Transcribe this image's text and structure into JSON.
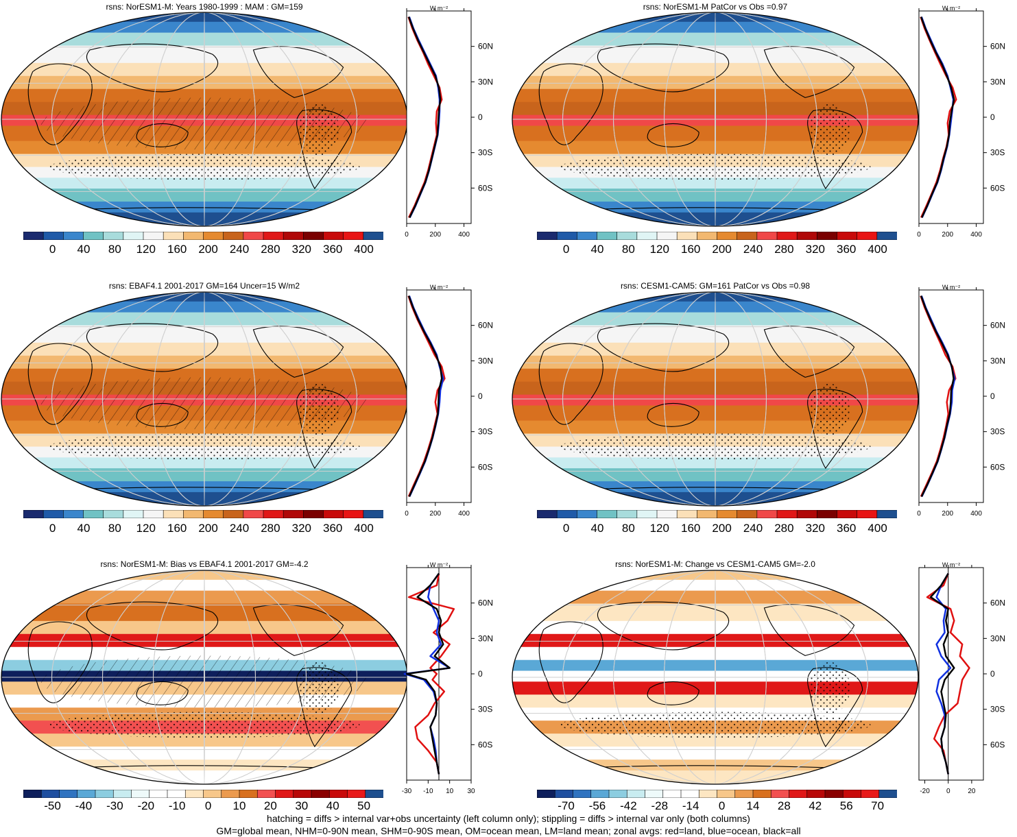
{
  "footer": {
    "line1": "hatching = diffs > internal var+obs uncertainty (left column only); stippling = diffs > internal var only (both columns)",
    "line2": "GM=global mean, NHM=0-90N mean, SHM=0-90S mean, OM=ocean mean, LM=land mean; zonal avgs: red=land, blue=ocean, black=all"
  },
  "colorbars": {
    "abs": {
      "labels": [
        "0",
        "40",
        "80",
        "120",
        "160",
        "200",
        "240",
        "280",
        "320",
        "360",
        "400"
      ],
      "colors": [
        "#1a2a6e",
        "#1f5aa8",
        "#3a86cc",
        "#70c2c4",
        "#a8dcdc",
        "#e0f5f5",
        "#f5f5f5",
        "#fbe0b8",
        "#f2b870",
        "#e58a30",
        "#c8641c",
        "#f04848",
        "#e01818",
        "#b00808",
        "#7a0000",
        "#c80a0a",
        "#e81414",
        "#1e4f8f"
      ]
    },
    "bias": {
      "labels": [
        "-50",
        "-40",
        "-30",
        "-20",
        "-10",
        "0",
        "10",
        "20",
        "30",
        "40",
        "50"
      ],
      "colors": [
        "#0e1f5c",
        "#1f4fa0",
        "#2f73c0",
        "#5aa8d6",
        "#8ccde0",
        "#c8ecf0",
        "#eefafa",
        "#ffffff",
        "#ffffff",
        "#fde6c2",
        "#f7c78a",
        "#eb9a4e",
        "#d8701f",
        "#f25050",
        "#e01818",
        "#b80808",
        "#8a0000",
        "#c80a0a",
        "#e81a1a",
        "#1e4f8f"
      ]
    },
    "change": {
      "labels": [
        "-70",
        "-56",
        "-42",
        "-28",
        "-14",
        "0",
        "14",
        "28",
        "42",
        "56",
        "70"
      ],
      "colors": [
        "#0e1f5c",
        "#1f4fa0",
        "#2f73c0",
        "#5aa8d6",
        "#8ccde0",
        "#c8ecf0",
        "#eefafa",
        "#ffffff",
        "#ffffff",
        "#fde6c2",
        "#f7c78a",
        "#eb9a4e",
        "#d8701f",
        "#f25050",
        "#e01818",
        "#b80808",
        "#8a0000",
        "#c80a0a",
        "#e81a1a",
        "#1e4f8f"
      ]
    }
  },
  "chart_data": [
    {
      "type": "heatmap",
      "title": "rsns: NorESM1-M: Years 1980-1999 : MAM : GM=159",
      "colorbar": "abs",
      "map_style": "abs",
      "hatching": true,
      "zonal": {
        "unit": "W m⁻²",
        "xlim": [
          0,
          450
        ],
        "xticks": [
          0,
          200,
          400
        ],
        "yticks": [
          "60N",
          "30N",
          "0",
          "30S",
          "60S"
        ],
        "ylim": [
          -90,
          90
        ],
        "lat": [
          -85,
          -75,
          -65,
          -55,
          -45,
          -35,
          -25,
          -15,
          -5,
          5,
          15,
          25,
          35,
          45,
          55,
          65,
          75,
          85
        ],
        "all": [
          20,
          60,
          95,
          130,
          155,
          175,
          195,
          215,
          220,
          225,
          235,
          225,
          200,
          160,
          120,
          80,
          45,
          15
        ],
        "land": [
          15,
          55,
          90,
          125,
          150,
          170,
          190,
          210,
          205,
          210,
          245,
          230,
          190,
          150,
          115,
          75,
          40,
          12
        ],
        "ocean": [
          22,
          62,
          97,
          132,
          157,
          177,
          197,
          217,
          225,
          230,
          230,
          220,
          205,
          165,
          125,
          85,
          48,
          18
        ]
      }
    },
    {
      "type": "heatmap",
      "title": "rsns: NorESM1-M PatCor vs Obs =0.97",
      "colorbar": "abs",
      "map_style": "abs",
      "hatching": false,
      "zonal": {
        "unit": "W m⁻²",
        "xlim": [
          0,
          450
        ],
        "xticks": [
          0,
          200,
          400
        ],
        "yticks": [
          "60N",
          "30N",
          "0",
          "30S",
          "60S"
        ],
        "ylim": [
          -90,
          90
        ],
        "lat": [
          -85,
          -75,
          -65,
          -55,
          -45,
          -35,
          -25,
          -15,
          -5,
          5,
          15,
          25,
          35,
          45,
          55,
          65,
          75,
          85
        ],
        "all": [
          20,
          58,
          92,
          128,
          152,
          172,
          195,
          210,
          215,
          228,
          245,
          225,
          195,
          160,
          118,
          80,
          45,
          15
        ],
        "land": [
          15,
          52,
          88,
          122,
          148,
          168,
          192,
          208,
          200,
          215,
          260,
          235,
          190,
          150,
          112,
          75,
          40,
          12
        ],
        "ocean": [
          22,
          60,
          95,
          130,
          155,
          175,
          197,
          212,
          222,
          232,
          240,
          220,
          200,
          165,
          122,
          85,
          48,
          18
        ]
      }
    },
    {
      "type": "heatmap",
      "title": "rsns: EBAF4.1 2001-2017 GM=164 Uncer=15 W/m2",
      "colorbar": "abs",
      "map_style": "abs",
      "hatching": true,
      "zonal": {
        "unit": "W m⁻²",
        "xlim": [
          0,
          450
        ],
        "xticks": [
          0,
          200,
          400
        ],
        "yticks": [
          "60N",
          "30N",
          "0",
          "30S",
          "60S"
        ],
        "ylim": [
          -90,
          90
        ],
        "lat": [
          -85,
          -75,
          -65,
          -55,
          -45,
          -35,
          -25,
          -15,
          -5,
          5,
          15,
          25,
          35,
          45,
          55,
          65,
          75,
          85
        ],
        "all": [
          18,
          55,
          92,
          128,
          155,
          180,
          200,
          218,
          222,
          225,
          245,
          235,
          205,
          165,
          120,
          80,
          45,
          15
        ],
        "land": [
          14,
          50,
          88,
          122,
          150,
          175,
          195,
          215,
          200,
          215,
          265,
          245,
          195,
          155,
          115,
          75,
          40,
          12
        ],
        "ocean": [
          20,
          58,
          95,
          130,
          157,
          182,
          202,
          220,
          230,
          235,
          255,
          230,
          210,
          170,
          125,
          85,
          48,
          18
        ]
      }
    },
    {
      "type": "heatmap",
      "title": "rsns: CESM1-CAM5: GM=161 PatCor vs Obs =0.98",
      "colorbar": "abs",
      "map_style": "abs",
      "hatching": false,
      "zonal": {
        "unit": "W m⁻²",
        "xlim": [
          0,
          450
        ],
        "xticks": [
          0,
          200,
          400
        ],
        "yticks": [
          "60N",
          "30N",
          "0",
          "30S",
          "60S"
        ],
        "ylim": [
          -90,
          90
        ],
        "lat": [
          -85,
          -75,
          -65,
          -55,
          -45,
          -35,
          -25,
          -15,
          -5,
          5,
          15,
          25,
          35,
          45,
          55,
          65,
          75,
          85
        ],
        "all": [
          18,
          58,
          95,
          130,
          155,
          178,
          195,
          215,
          222,
          225,
          242,
          230,
          200,
          160,
          118,
          80,
          45,
          15
        ],
        "land": [
          14,
          52,
          90,
          125,
          150,
          172,
          190,
          205,
          195,
          210,
          255,
          235,
          185,
          150,
          112,
          75,
          40,
          12
        ],
        "ocean": [
          20,
          60,
          97,
          132,
          157,
          180,
          198,
          218,
          230,
          232,
          250,
          228,
          205,
          165,
          122,
          85,
          48,
          18
        ]
      }
    },
    {
      "type": "heatmap",
      "title": "rsns: NorESM1-M: Bias vs EBAF4.1 2001-2017 GM=-4.2",
      "colorbar": "bias",
      "map_style": "bias",
      "hatching": true,
      "zonal": {
        "unit": "W m⁻²",
        "xlim": [
          -30,
          30
        ],
        "xticks": [
          -30,
          -10,
          10,
          30
        ],
        "yticks": [
          "60N",
          "30N",
          "0",
          "30S",
          "60S"
        ],
        "ylim": [
          -90,
          90
        ],
        "lat": [
          -85,
          -75,
          -65,
          -55,
          -45,
          -35,
          -25,
          -15,
          -5,
          0,
          5,
          15,
          25,
          35,
          45,
          55,
          65,
          75,
          85
        ],
        "all": [
          0,
          -2,
          -4,
          -6,
          -8,
          -3,
          -2,
          -4,
          -12,
          -30,
          10,
          -4,
          4,
          0,
          2,
          -2,
          -20,
          -8,
          0
        ],
        "land": [
          0,
          -2,
          -10,
          -20,
          -22,
          -10,
          -4,
          5,
          -6,
          -2,
          -8,
          2,
          10,
          -5,
          8,
          14,
          -28,
          -2,
          0
        ],
        "ocean": [
          0,
          -2,
          -3,
          -5,
          -8,
          -3,
          -2,
          -5,
          -14,
          -32,
          10,
          -8,
          2,
          -2,
          0,
          -5,
          -10,
          -8,
          0
        ]
      }
    },
    {
      "type": "heatmap",
      "title": "rsns: NorESM1-M: Change vs CESM1-CAM5 GM=-2.0",
      "colorbar": "change",
      "map_style": "change",
      "hatching": false,
      "zonal": {
        "unit": "W m⁻²",
        "xlim": [
          -25,
          30
        ],
        "xticks": [
          -20,
          0,
          20
        ],
        "yticks": [
          "60N",
          "30N",
          "0",
          "30S",
          "60S"
        ],
        "ylim": [
          -90,
          90
        ],
        "lat": [
          -85,
          -75,
          -65,
          -55,
          -45,
          -35,
          -25,
          -15,
          -5,
          5,
          15,
          25,
          35,
          45,
          55,
          65,
          75,
          85
        ],
        "all": [
          0,
          -2,
          -5,
          -6,
          -3,
          -2,
          -4,
          -6,
          -3,
          5,
          -2,
          -4,
          0,
          -2,
          0,
          -15,
          -6,
          0
        ],
        "land": [
          0,
          -2,
          -4,
          -12,
          -8,
          -3,
          8,
          10,
          12,
          18,
          10,
          12,
          2,
          5,
          2,
          -18,
          -4,
          0
        ],
        "ocean": [
          0,
          -2,
          -5,
          -6,
          -3,
          -3,
          -6,
          -10,
          -8,
          2,
          -6,
          -10,
          -3,
          -4,
          -2,
          -10,
          -6,
          0
        ]
      }
    }
  ]
}
